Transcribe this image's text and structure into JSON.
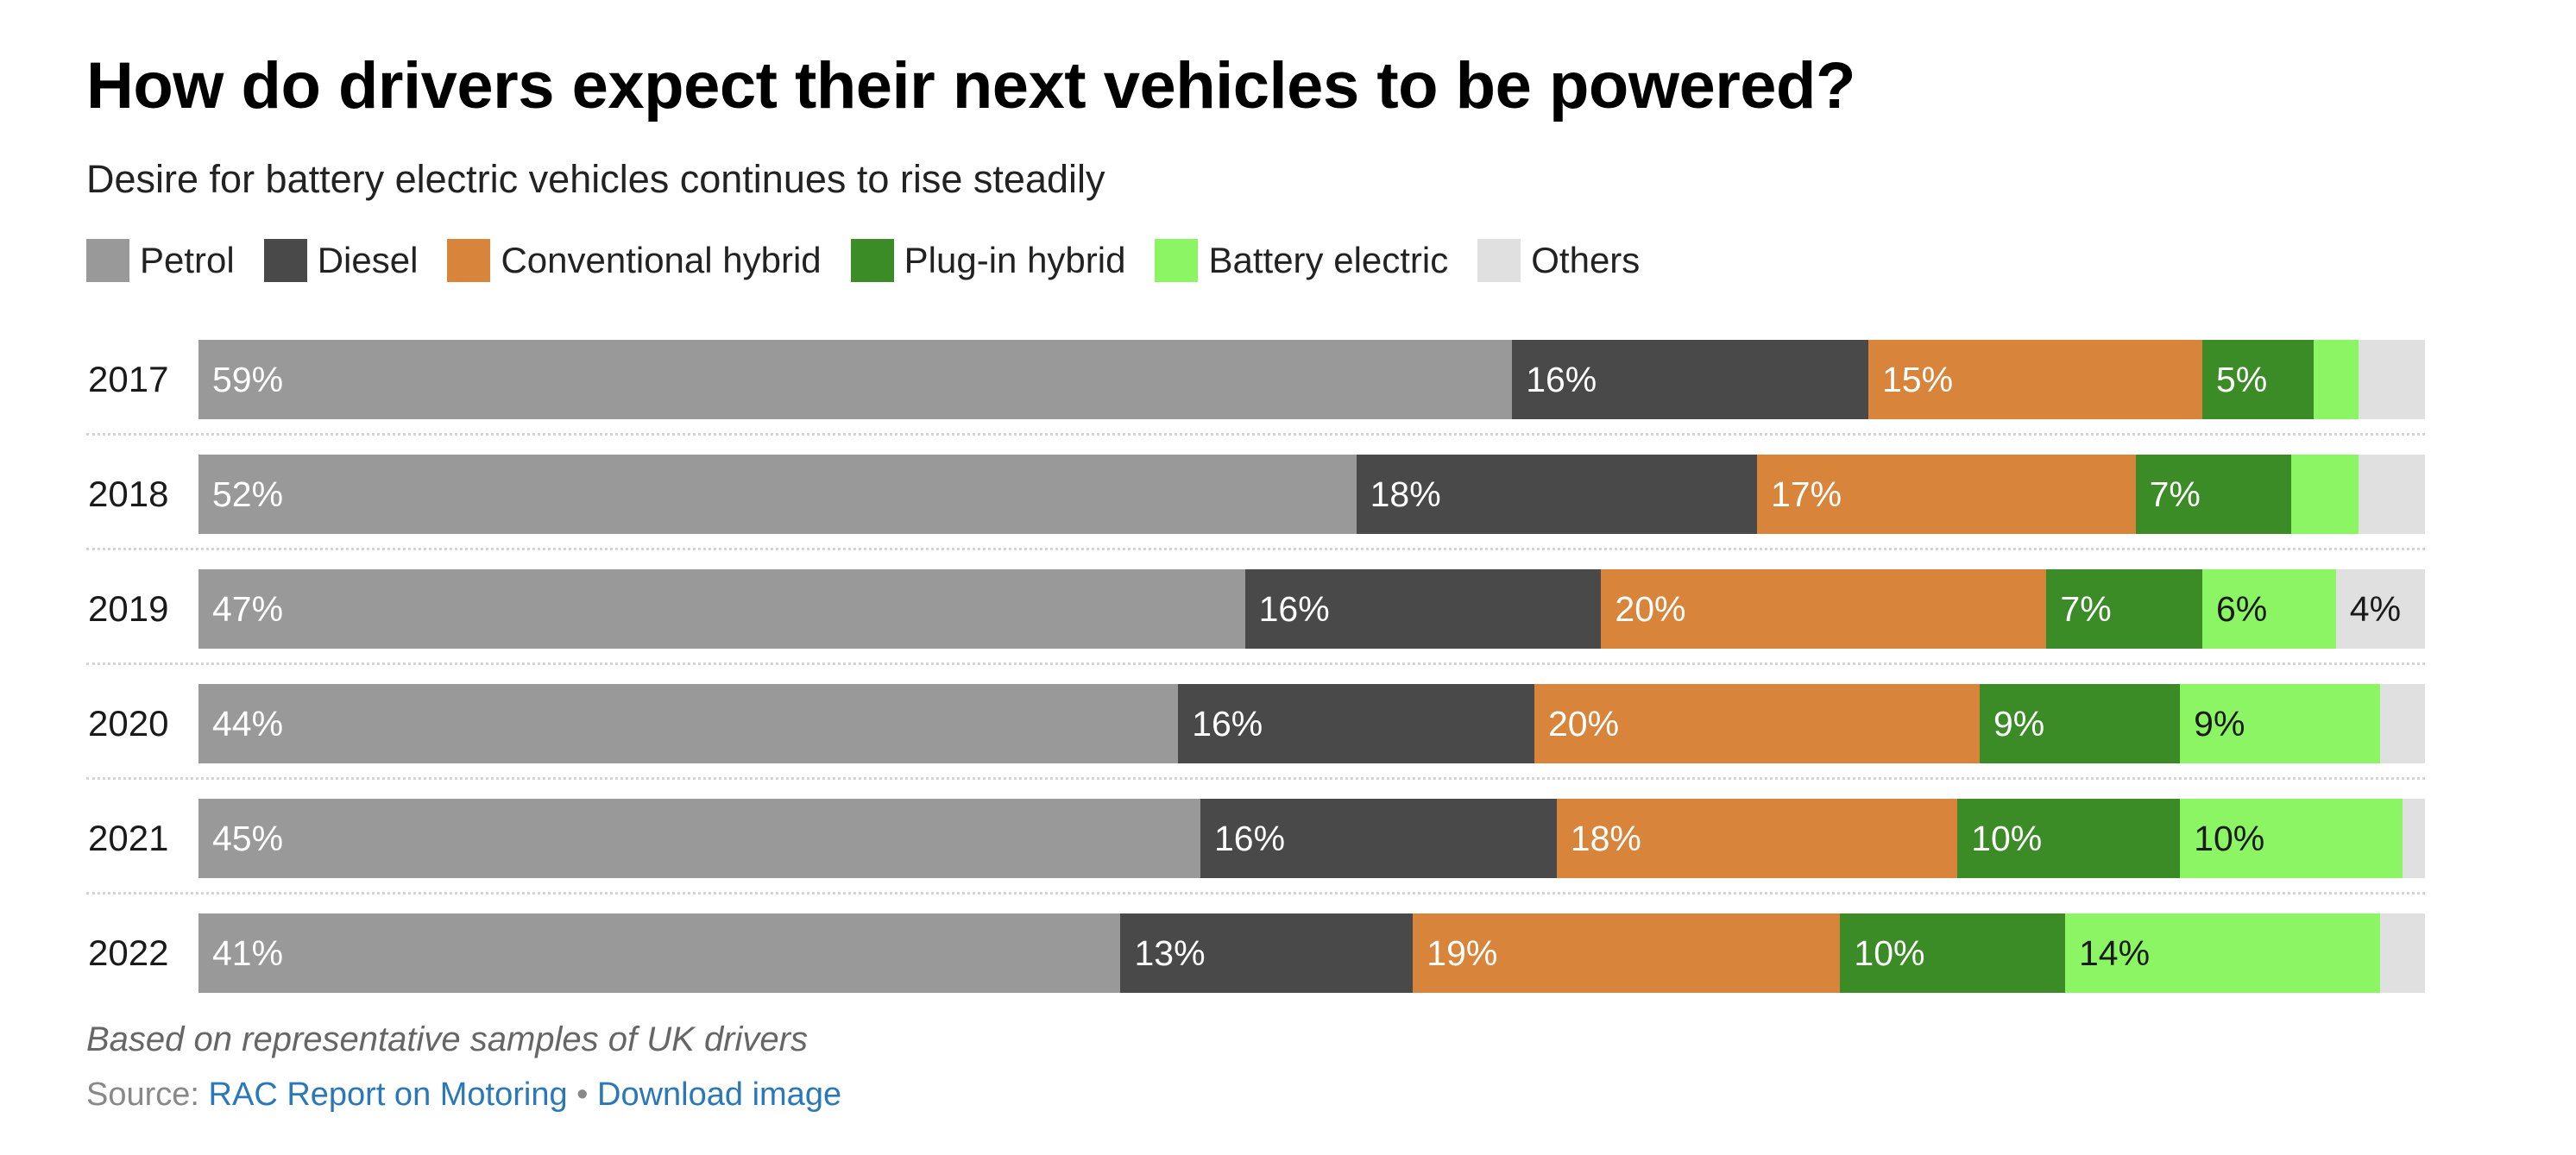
{
  "title": "How do drivers expect their next vehicles to be powered?",
  "subtitle": "Desire for battery electric vehicles continues to rise steadily",
  "footnote": "Based on representative samples of UK drivers",
  "source": {
    "prefix": "Source: ",
    "link_text": "RAC Report on Motoring",
    "separator": " • ",
    "download_text": "Download image"
  },
  "chart_data": {
    "type": "bar",
    "orientation": "horizontal",
    "stacked": true,
    "title": "How do drivers expect their next vehicles to be powered?",
    "subtitle": "Desire for battery electric vehicles continues to rise steadily",
    "categories": [
      "2017",
      "2018",
      "2019",
      "2020",
      "2021",
      "2022"
    ],
    "unit": "%",
    "xlim": [
      0,
      100
    ],
    "legend_position": "top-left",
    "grid": false,
    "series": [
      {
        "name": "Petrol",
        "color": "#999999",
        "label_color": "#ffffff",
        "values": [
          59,
          52,
          47,
          44,
          45,
          41
        ]
      },
      {
        "name": "Diesel",
        "color": "#494949",
        "label_color": "#ffffff",
        "values": [
          16,
          18,
          16,
          16,
          16,
          13
        ]
      },
      {
        "name": "Conventional hybrid",
        "color": "#d8843a",
        "label_color": "#ffffff",
        "values": [
          15,
          17,
          20,
          20,
          18,
          19
        ]
      },
      {
        "name": "Plug-in hybrid",
        "color": "#3b8b27",
        "label_color": "#ffffff",
        "values": [
          5,
          7,
          7,
          9,
          10,
          10
        ]
      },
      {
        "name": "Battery electric",
        "color": "#8cf564",
        "label_color": "#1a1a1a",
        "values": [
          2,
          3,
          6,
          9,
          10,
          14
        ]
      },
      {
        "name": "Others",
        "color": "#e0e0e0",
        "label_color": "#1a1a1a",
        "values": [
          3,
          3,
          4,
          2,
          1,
          2
        ]
      }
    ],
    "data_labels": [
      [
        "59%",
        "16%",
        "15%",
        "5%",
        "",
        ""
      ],
      [
        "52%",
        "18%",
        "17%",
        "7%",
        "",
        ""
      ],
      [
        "47%",
        "16%",
        "20%",
        "7%",
        "6%",
        "4%"
      ],
      [
        "44%",
        "16%",
        "20%",
        "9%",
        "9%",
        ""
      ],
      [
        "45%",
        "16%",
        "18%",
        "10%",
        "10%",
        ""
      ],
      [
        "41%",
        "13%",
        "19%",
        "10%",
        "14%",
        ""
      ]
    ]
  }
}
